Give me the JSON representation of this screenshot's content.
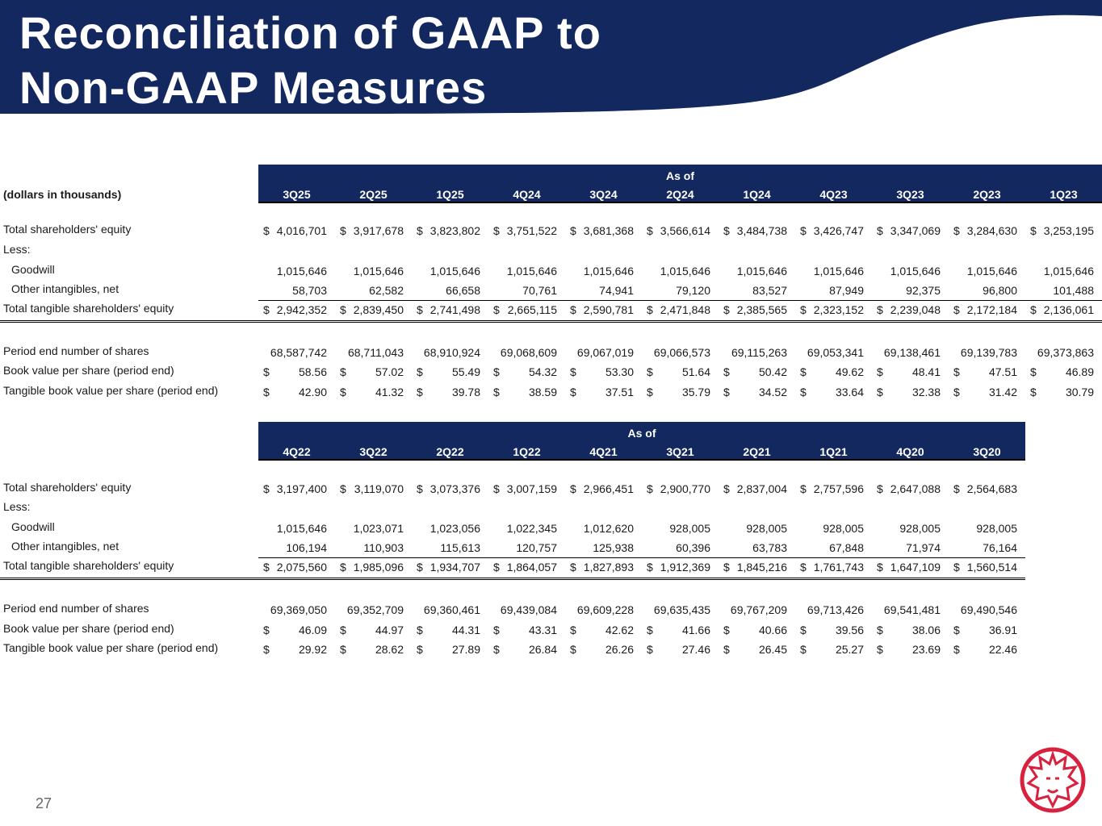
{
  "header": {
    "title_lines": [
      "Reconciliation of GAAP to",
      "Non-GAAP Measures"
    ]
  },
  "tables": [
    {
      "group_header": "As of",
      "units": "(dollars in thousands)",
      "columns": [
        "3Q25",
        "2Q25",
        "1Q25",
        "4Q24",
        "3Q24",
        "2Q24",
        "1Q24",
        "4Q23",
        "3Q23",
        "2Q23",
        "1Q23"
      ],
      "rows": [
        {
          "label": "Total shareholders' equity",
          "currency": "$",
          "values": [
            "4,016,701",
            "3,917,678",
            "3,823,802",
            "3,751,522",
            "3,681,368",
            "3,566,614",
            "3,484,738",
            "3,426,747",
            "3,347,069",
            "3,284,630",
            "3,253,195"
          ]
        },
        {
          "label": "Less:"
        },
        {
          "label": "Goodwill",
          "values": [
            "1,015,646",
            "1,015,646",
            "1,015,646",
            "1,015,646",
            "1,015,646",
            "1,015,646",
            "1,015,646",
            "1,015,646",
            "1,015,646",
            "1,015,646",
            "1,015,646"
          ]
        },
        {
          "label": "Other intangibles, net",
          "values": [
            "58,703",
            "62,582",
            "66,658",
            "70,761",
            "74,941",
            "79,120",
            "83,527",
            "87,949",
            "92,375",
            "96,800",
            "101,488"
          ]
        },
        {
          "label": "Total tangible shareholders' equity",
          "currency": "$",
          "values": [
            "2,942,352",
            "2,839,450",
            "2,741,498",
            "2,665,115",
            "2,590,781",
            "2,471,848",
            "2,385,565",
            "2,323,152",
            "2,239,048",
            "2,172,184",
            "2,136,061"
          ]
        },
        {
          "label": "Period end number of shares",
          "values": [
            "68,587,742",
            "68,711,043",
            "68,910,924",
            "69,068,609",
            "69,067,019",
            "69,066,573",
            "69,115,263",
            "69,053,341",
            "69,138,461",
            "69,139,783",
            "69,373,863"
          ]
        },
        {
          "label": "Book value per share (period end)",
          "currency": "$",
          "values": [
            "58.56",
            "57.02",
            "55.49",
            "54.32",
            "53.30",
            "51.64",
            "50.42",
            "49.62",
            "48.41",
            "47.51",
            "46.89"
          ]
        },
        {
          "label": "Tangible book value per share (period end)",
          "currency": "$",
          "values": [
            "42.90",
            "41.32",
            "39.78",
            "38.59",
            "37.51",
            "35.79",
            "34.52",
            "33.64",
            "32.38",
            "31.42",
            "30.79"
          ]
        }
      ]
    },
    {
      "group_header": "As of",
      "columns": [
        "4Q22",
        "3Q22",
        "2Q22",
        "1Q22",
        "4Q21",
        "3Q21",
        "2Q21",
        "1Q21",
        "4Q20",
        "3Q20"
      ],
      "rows": [
        {
          "label": "Total shareholders' equity",
          "currency": "$",
          "values": [
            "3,197,400",
            "3,119,070",
            "3,073,376",
            "3,007,159",
            "2,966,451",
            "2,900,770",
            "2,837,004",
            "2,757,596",
            "2,647,088",
            "2,564,683"
          ]
        },
        {
          "label": "Less:"
        },
        {
          "label": "Goodwill",
          "values": [
            "1,015,646",
            "1,023,071",
            "1,023,056",
            "1,022,345",
            "1,012,620",
            "928,005",
            "928,005",
            "928,005",
            "928,005",
            "928,005"
          ]
        },
        {
          "label": "Other intangibles, net",
          "values": [
            "106,194",
            "110,903",
            "115,613",
            "120,757",
            "125,938",
            "60,396",
            "63,783",
            "67,848",
            "71,974",
            "76,164"
          ]
        },
        {
          "label": "Total tangible shareholders' equity",
          "currency": "$",
          "values": [
            "2,075,560",
            "1,985,096",
            "1,934,707",
            "1,864,057",
            "1,827,893",
            "1,912,369",
            "1,845,216",
            "1,761,743",
            "1,647,109",
            "1,560,514"
          ]
        },
        {
          "label": "Period end number of shares",
          "values": [
            "69,369,050",
            "69,352,709",
            "69,360,461",
            "69,439,084",
            "69,609,228",
            "69,635,435",
            "69,767,209",
            "69,713,426",
            "69,541,481",
            "69,490,546"
          ]
        },
        {
          "label": "Book value per share (period end)",
          "currency": "$",
          "values": [
            "46.09",
            "44.97",
            "44.31",
            "43.31",
            "42.62",
            "41.66",
            "40.66",
            "39.56",
            "38.06",
            "36.91"
          ]
        },
        {
          "label": "Tangible book value per share (period end)",
          "currency": "$",
          "values": [
            "29.92",
            "28.62",
            "27.89",
            "26.84",
            "26.26",
            "27.46",
            "26.45",
            "25.27",
            "23.69",
            "22.46"
          ]
        }
      ]
    }
  ],
  "footer": {
    "page_number": "27"
  }
}
